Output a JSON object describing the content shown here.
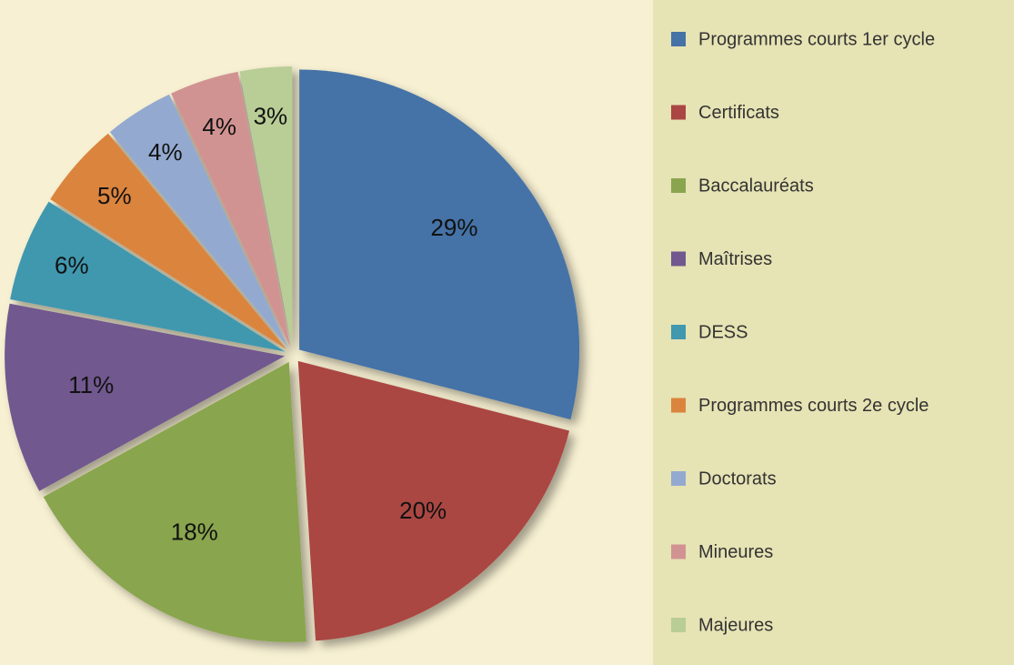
{
  "chart_data": {
    "type": "pie",
    "categories": [
      "Programmes courts 1er cycle",
      "Certificats",
      "Baccalauréats",
      "Maîtrises",
      "DESS",
      "Programmes courts 2e cycle",
      "Doctorats",
      "Mineures",
      "Majeures"
    ],
    "values": [
      29,
      20,
      18,
      11,
      6,
      5,
      4,
      4,
      3
    ],
    "value_labels": [
      "29%",
      "20%",
      "18%",
      "11%",
      "6%",
      "5%",
      "4%",
      "4%",
      "3%"
    ],
    "colors": [
      "#4572a7",
      "#aa4643",
      "#89a54e",
      "#71588f",
      "#4198af",
      "#db843d",
      "#93a9cf",
      "#d19392",
      "#b9cd96"
    ],
    "legend": "right"
  }
}
